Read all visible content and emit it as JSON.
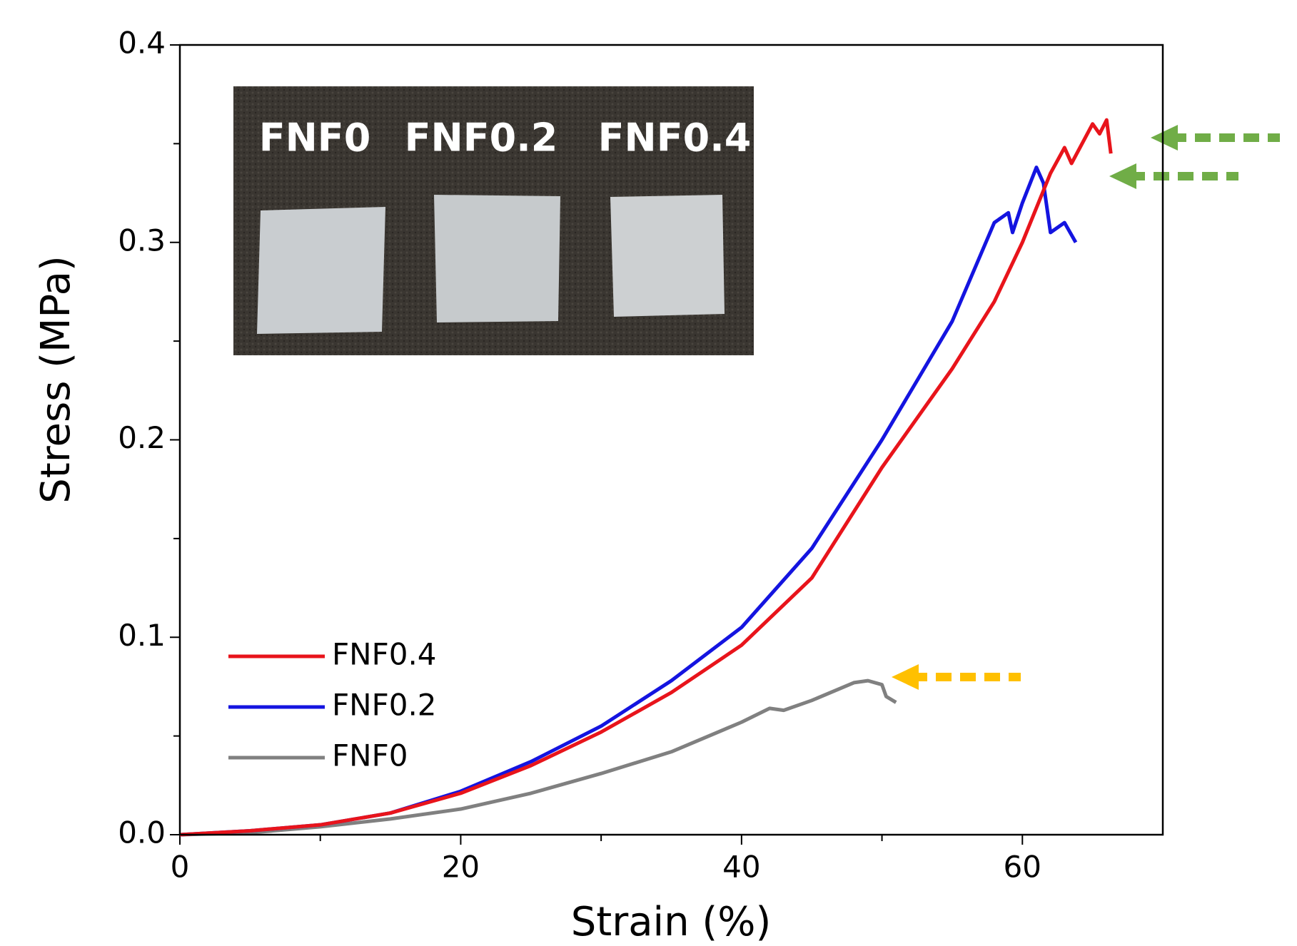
{
  "chart_data": {
    "type": "line",
    "xlabel": "Strain (%)",
    "ylabel": "Stress (MPa)",
    "xlim": [
      0,
      70
    ],
    "ylim": [
      0,
      0.4
    ],
    "xticks": [
      0,
      20,
      40,
      60
    ],
    "xminorticks": [
      10,
      30,
      50
    ],
    "yticks": [
      {
        "value": 0,
        "label": "0.0"
      },
      0.1,
      0.2,
      0.3,
      0.4
    ],
    "yminorticks": [
      0.05,
      0.15,
      0.25,
      0.35
    ],
    "grid": false,
    "legend": "lower left",
    "inset_labels": [
      "FNF0",
      "FNF0.2",
      "FNF0.4"
    ],
    "series": [
      {
        "name": "FNF0.4",
        "color": "#e8141b",
        "x": [
          0,
          5,
          10,
          15,
          20,
          25,
          30,
          35,
          40,
          45,
          50,
          55,
          58,
          60,
          62,
          63,
          63.5,
          65,
          65.5,
          66,
          66.3
        ],
        "values": [
          0,
          0.002,
          0.005,
          0.011,
          0.021,
          0.035,
          0.052,
          0.072,
          0.096,
          0.13,
          0.186,
          0.236,
          0.27,
          0.3,
          0.335,
          0.348,
          0.34,
          0.36,
          0.355,
          0.362,
          0.345
        ]
      },
      {
        "name": "FNF0.2",
        "color": "#1414e0",
        "x": [
          0,
          5,
          10,
          15,
          20,
          25,
          30,
          35,
          40,
          45,
          50,
          55,
          58,
          59,
          59.3,
          60,
          61,
          61.5,
          62,
          63,
          63.8
        ],
        "values": [
          0,
          0.002,
          0.005,
          0.011,
          0.022,
          0.037,
          0.055,
          0.078,
          0.105,
          0.145,
          0.2,
          0.26,
          0.31,
          0.315,
          0.305,
          0.32,
          0.338,
          0.33,
          0.305,
          0.31,
          0.3
        ]
      },
      {
        "name": "FNF0",
        "color": "#808080",
        "x": [
          0,
          5,
          10,
          15,
          20,
          25,
          30,
          35,
          40,
          42,
          43,
          45,
          48,
          49,
          50,
          50.3,
          51
        ],
        "values": [
          0,
          0.001,
          0.004,
          0.008,
          0.013,
          0.021,
          0.031,
          0.042,
          0.057,
          0.064,
          0.063,
          0.068,
          0.077,
          0.078,
          0.076,
          0.07,
          0.067
        ]
      }
    ]
  }
}
